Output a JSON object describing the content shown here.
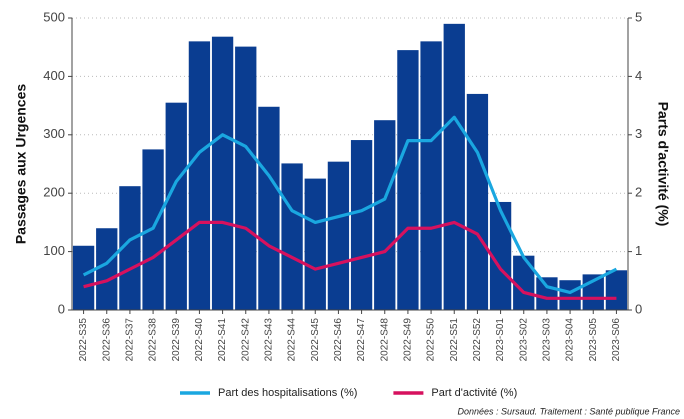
{
  "chart_data": {
    "type": "bar",
    "y_label": "Passages aux Urgences",
    "y2_label": "Parts d'activité (%)",
    "source": "Données : Sursaud. Traitement : Santé publique France",
    "categories": [
      "2022-S35",
      "2022-S36",
      "2022-S37",
      "2022-S38",
      "2022-S39",
      "2022-S40",
      "2022-S41",
      "2022-S42",
      "2022-S43",
      "2022-S44",
      "2022-S45",
      "2022-S46",
      "2022-S47",
      "2022-S48",
      "2022-S49",
      "2022-S50",
      "2022-S51",
      "2022-S52",
      "2023-S01",
      "2023-S02",
      "2023-S03",
      "2023-S04",
      "2023-S05",
      "2023-S06"
    ],
    "series": [
      {
        "type": "bar",
        "color": "#0a3d91",
        "values": [
          110,
          140,
          212,
          275,
          355,
          460,
          468,
          451,
          348,
          251,
          225,
          254,
          291,
          325,
          445,
          460,
          490,
          370,
          185,
          93,
          56,
          51,
          61,
          68
        ]
      },
      {
        "type": "line",
        "axis": "y2",
        "name": "Part des hospitalisations (%)",
        "color": "#1aa7e0",
        "values": [
          0.6,
          0.8,
          1.2,
          1.4,
          2.2,
          2.7,
          3.0,
          2.8,
          2.3,
          1.7,
          1.5,
          1.6,
          1.7,
          1.9,
          2.9,
          2.9,
          3.3,
          2.7,
          1.7,
          0.9,
          0.4,
          0.3,
          0.5,
          0.7
        ]
      },
      {
        "type": "line",
        "axis": "y2",
        "name": "Part d'activité (%)",
        "color": "#d6115e",
        "values": [
          0.4,
          0.5,
          0.7,
          0.9,
          1.2,
          1.5,
          1.5,
          1.4,
          1.1,
          0.9,
          0.7,
          0.8,
          0.9,
          1.0,
          1.4,
          1.4,
          1.5,
          1.3,
          0.7,
          0.3,
          0.2,
          0.2,
          0.2,
          0.2
        ]
      }
    ],
    "ylim": [
      0,
      500
    ],
    "yticks": [
      0,
      100,
      200,
      300,
      400,
      500
    ],
    "y2lim": [
      0,
      5
    ],
    "y2ticks": [
      0,
      1,
      2,
      3,
      4,
      5
    ],
    "grid": true
  }
}
